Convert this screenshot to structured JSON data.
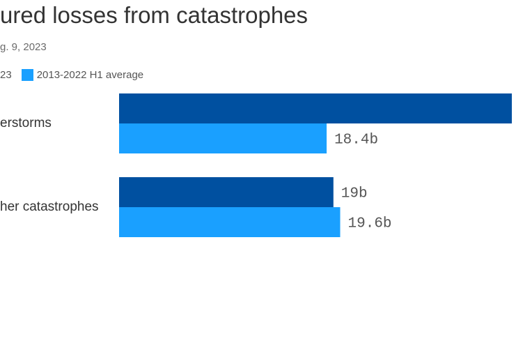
{
  "chart_data": {
    "type": "bar",
    "orientation": "horizontal",
    "title": "ured losses from catastrophes",
    "subtitle": "g. 9, 2023",
    "categories": [
      "erstorms",
      "her catastrophes"
    ],
    "series": [
      {
        "name": "23",
        "color": "#0050a0",
        "values": [
          null,
          19
        ],
        "labels": [
          "",
          "19b"
        ]
      },
      {
        "name": "2013-2022 H1 average",
        "color": "#1aa0ff",
        "values": [
          18.4,
          19.6
        ],
        "labels": [
          "18.4b",
          "19.6b"
        ]
      }
    ],
    "legend_placement": "top-left",
    "grid": false,
    "unit": "b"
  }
}
